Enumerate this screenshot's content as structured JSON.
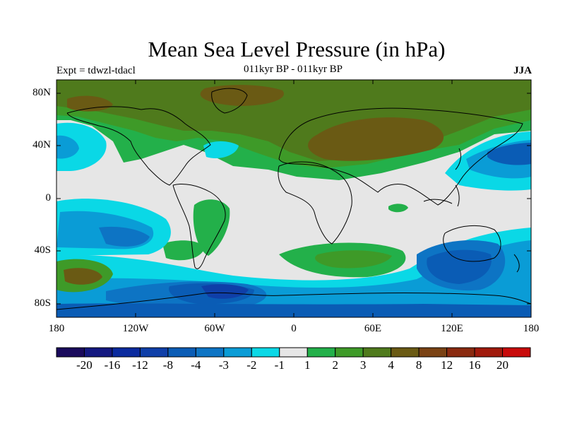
{
  "title": "Mean Sea Level Pressure (in hPa)",
  "subtitle": "011kyr BP - 011kyr BP",
  "experiment": "Expt = tdwzl-tdacl",
  "season": "JJA",
  "lat_labels": [
    "80N",
    "40N",
    "0",
    "40S",
    "80S"
  ],
  "lon_labels": [
    "180",
    "120W",
    "60W",
    "0",
    "60E",
    "120E",
    "180"
  ],
  "colorbar": {
    "colors": [
      "#1a0a5c",
      "#141880",
      "#0a2a9e",
      "#0f3fa8",
      "#0a5cb5",
      "#0d74c4",
      "#0a9cd6",
      "#0ad8e6",
      "#e6e6e6",
      "#23b04a",
      "#3e9a28",
      "#4f7a1c",
      "#6a5a14",
      "#7a4214",
      "#8a2a10",
      "#a01a0c",
      "#c80a0a"
    ],
    "labels": [
      "-20",
      "-16",
      "-12",
      "-8",
      "-4",
      "-3",
      "-2",
      "-1",
      "1",
      "2",
      "3",
      "4",
      "8",
      "12",
      "16",
      "20"
    ]
  },
  "palette": {
    "neutral": "#e6e6e6",
    "green": "#23b04a",
    "dark_green": "#3e9a28",
    "olive": "#4f7a1c",
    "brown": "#6a5a14",
    "dark_brown": "#7a4214",
    "cyan": "#0ad8e6",
    "light_blue": "#0a9cd6",
    "mid_blue": "#0d74c4",
    "blue": "#0a5cb5",
    "deep_blue": "#0f3fa8"
  }
}
